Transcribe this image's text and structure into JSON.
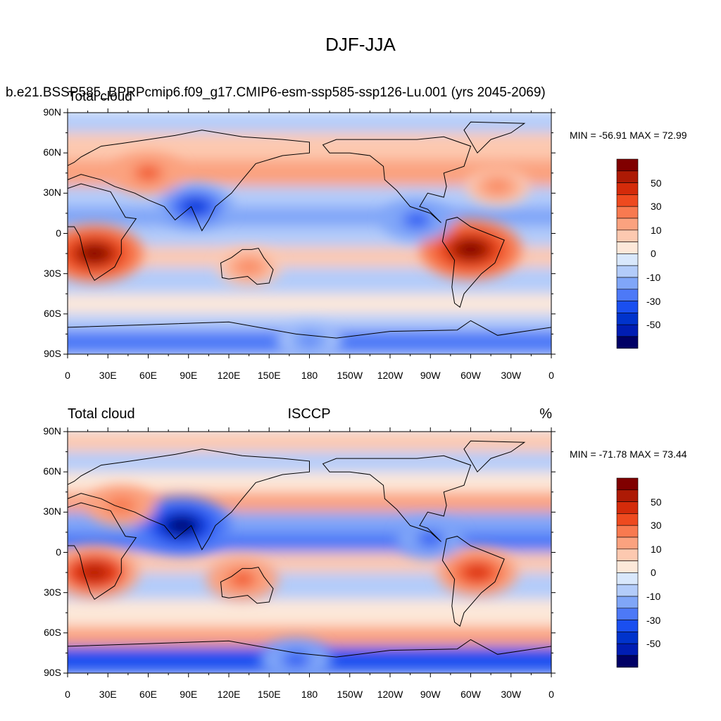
{
  "figure": {
    "title": "DJF-JJA",
    "colorbar_colors": [
      "#000066",
      "#001db3",
      "#0033cc",
      "#1a4ff0",
      "#4d79f7",
      "#80a6f8",
      "#b3ccfa",
      "#d9e8fc",
      "#fde8d9",
      "#fdc9b0",
      "#fba27f",
      "#f87a50",
      "#ee4a1f",
      "#d42b0a",
      "#ad1a05",
      "#800000"
    ],
    "colorbar_ticks": [
      "50",
      "30",
      "10",
      "0",
      "-10",
      "-30",
      "-50"
    ],
    "lat_ticks": [
      "90N",
      "60N",
      "30N",
      "0",
      "30S",
      "60S",
      "90S"
    ],
    "lon_ticks": [
      "0",
      "30E",
      "60E",
      "90E",
      "120E",
      "150E",
      "180",
      "150W",
      "120W",
      "90W",
      "60W",
      "30W",
      "0"
    ]
  },
  "panels": [
    {
      "case_title": "b.e21.BSSP585_BPRPcmip6.f09_g17.CMIP6-esm-ssp585-ssp126-Lu.001 (yrs 2045-2069)",
      "overlap_title": "Total cloud",
      "variable": "Total cloud",
      "min_max": "MIN = -56.91 MAX =  72.99"
    },
    {
      "left_title": "Total cloud",
      "center_title": "ISCCP",
      "units": "%",
      "min_max": "MIN = -71.78 MAX =  73.44"
    }
  ],
  "chart_data": [
    {
      "type": "heatmap",
      "title": "DJF-JJA",
      "subtitle": "b.e21.BSSP585_BPRPcmip6.f09_g17.CMIP6-esm-ssp585-ssp126-Lu.001 (yrs 2045-2069)",
      "variable": "Total cloud",
      "xlim": [
        0,
        360
      ],
      "ylim": [
        -90,
        90
      ],
      "min": -56.91,
      "max": 72.99,
      "contour_levels": [
        -60,
        -50,
        -40,
        -30,
        -20,
        -10,
        -5,
        0,
        5,
        10,
        20,
        30,
        40,
        50,
        60
      ],
      "features": [
        {
          "lon": 20,
          "lat": -15,
          "value": 65,
          "sign": "positive"
        },
        {
          "lon": 300,
          "lat": -12,
          "value": 70,
          "sign": "positive"
        },
        {
          "lon": 60,
          "lat": 45,
          "value": 35,
          "sign": "positive"
        },
        {
          "lon": 95,
          "lat": 20,
          "value": -40,
          "sign": "negative"
        },
        {
          "lon": 260,
          "lat": 10,
          "value": -35,
          "sign": "negative"
        },
        {
          "lon": 135,
          "lat": -25,
          "value": 25,
          "sign": "positive"
        },
        {
          "lon": 320,
          "lat": 35,
          "value": 25,
          "sign": "positive"
        },
        {
          "lon": 180,
          "lat": -80,
          "value": -25,
          "sign": "negative"
        }
      ]
    },
    {
      "type": "heatmap",
      "title": "ISCCP",
      "variable": "Total cloud",
      "units": "%",
      "xlim": [
        0,
        360
      ],
      "ylim": [
        -90,
        90
      ],
      "min": -71.78,
      "max": 73.44,
      "contour_levels": [
        -60,
        -50,
        -40,
        -30,
        -20,
        -10,
        -5,
        0,
        5,
        10,
        20,
        30,
        40,
        50,
        60
      ],
      "features": [
        {
          "lon": 20,
          "lat": -15,
          "value": 55,
          "sign": "positive"
        },
        {
          "lon": 305,
          "lat": -15,
          "value": 45,
          "sign": "positive"
        },
        {
          "lon": 85,
          "lat": 20,
          "value": -65,
          "sign": "negative"
        },
        {
          "lon": 130,
          "lat": -20,
          "value": 35,
          "sign": "positive"
        },
        {
          "lon": 40,
          "lat": 35,
          "value": 30,
          "sign": "positive"
        },
        {
          "lon": 270,
          "lat": 10,
          "value": -30,
          "sign": "negative"
        },
        {
          "lon": 170,
          "lat": -80,
          "value": -35,
          "sign": "negative"
        }
      ]
    }
  ]
}
